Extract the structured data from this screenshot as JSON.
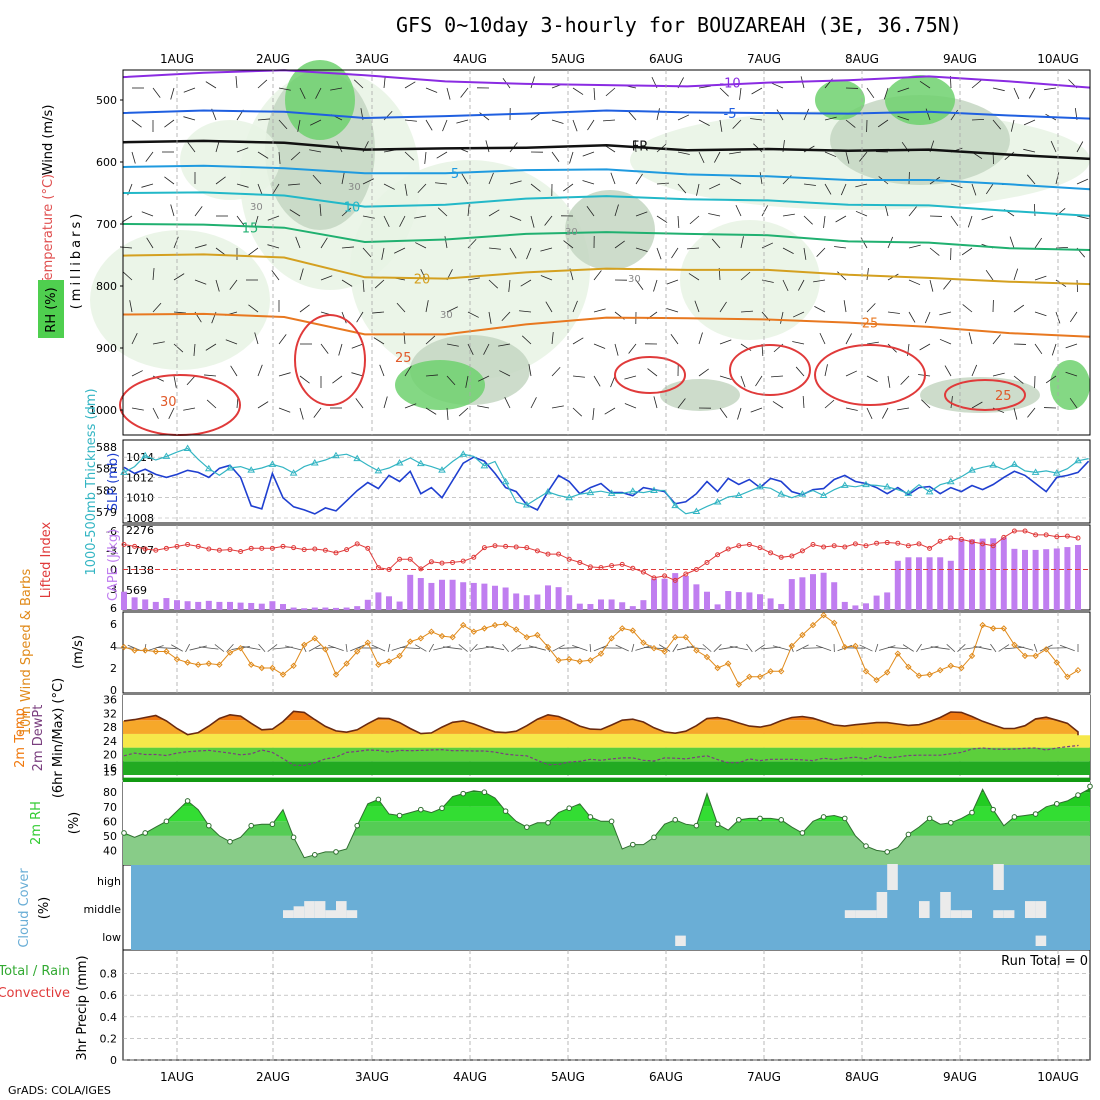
{
  "title": "GFS 0~10day 3-hourly for BOUZAREAH (3E, 36.75N)",
  "credit": "GrADS: COLA/IGES",
  "run_total": "Run Total = 0",
  "colors": {
    "rh_light": "#e8f3e4",
    "rh_mid": "#c4d6c2",
    "rh_green": "#6fd16f",
    "rh_bright": "#33cc33",
    "slp": "#1f3fd0",
    "thickness": "#33b5c3",
    "lifted": "#e03a3a",
    "cape": "#c07ef0",
    "wind": "#e08a1a",
    "temp_fill": "#f07a10",
    "temp_line": "#6a2a10",
    "dew": "#7a3f7f",
    "rh2m": "#33cc33",
    "cloud": "#6aaed6",
    "cloud_block": "#ebebeb",
    "grid": "#a8a8a8"
  },
  "chart_data": [
    {
      "id": "upper_air",
      "type": "contour",
      "y_label_wind": "Wind (m/s)",
      "y_label_temp": "Temperature (°C)",
      "y_label_rh": "RH (%)",
      "y_label_units": "(millibars)",
      "yticks": [
        500,
        600,
        700,
        800,
        900,
        1000
      ],
      "x_dates": [
        "1AUG",
        "2AUG",
        "3AUG",
        "4AUG",
        "5AUG",
        "6AUG",
        "7AUG",
        "8AUG",
        "9AUG",
        "10AUG"
      ],
      "isotherms": [
        {
          "label": "-10",
          "color": "#8a2be2",
          "levels_mb": [
            463,
            456,
            452,
            460,
            470,
            474,
            476,
            478,
            472,
            468,
            462,
            470,
            480
          ]
        },
        {
          "label": "-5",
          "color": "#1f5fe0",
          "levels_mb": [
            521,
            517,
            519,
            529,
            526,
            522,
            517,
            520,
            521,
            522,
            519,
            525,
            530
          ]
        },
        {
          "label": "FR",
          "color": "#111111",
          "levels_mb": [
            568,
            566,
            569,
            580,
            578,
            577,
            573,
            581,
            579,
            582,
            580,
            588,
            595
          ]
        },
        {
          "label": "5",
          "color": "#1f9adf",
          "levels_mb": [
            608,
            606,
            610,
            618,
            618,
            613,
            612,
            620,
            623,
            629,
            629,
            636,
            644
          ]
        },
        {
          "label": "10",
          "color": "#22b8c8",
          "levels_mb": [
            650,
            649,
            654,
            672,
            669,
            659,
            655,
            660,
            662,
            669,
            670,
            679,
            687
          ]
        },
        {
          "label": "15",
          "color": "#20b070",
          "levels_mb": [
            700,
            701,
            706,
            729,
            725,
            716,
            713,
            716,
            718,
            728,
            730,
            739,
            742
          ]
        },
        {
          "label": "20",
          "color": "#d4a020",
          "levels_mb": [
            751,
            749,
            754,
            786,
            788,
            778,
            772,
            774,
            774,
            782,
            787,
            793,
            797
          ]
        },
        {
          "label": "25",
          "color": "#e87820",
          "levels_mb": [
            846,
            845,
            850,
            878,
            878,
            862,
            851,
            852,
            854,
            859,
            866,
            876,
            882
          ]
        }
      ],
      "rh_labels": [
        "30",
        "30",
        "30",
        "30",
        "30"
      ],
      "temp_labels": [
        "30",
        "25",
        "25"
      ]
    },
    {
      "id": "slp_thickness",
      "type": "line",
      "y_label": "SLP (mb)",
      "y2_label": "1000-500mb Thickness (dm)",
      "thickness_ticks": [
        579,
        582,
        585,
        588
      ],
      "slp_ticks": [
        1008,
        1010,
        1012,
        1014
      ],
      "slp_range": [
        1008,
        1015
      ],
      "thickness_range": [
        578.2,
        588
      ],
      "series": [
        {
          "name": "SLP",
          "values": [
            1013.0,
            1012.4,
            1012.8,
            1012.3,
            1012.0,
            1012.3,
            1012.7,
            1012.5,
            1012.0,
            1012.9,
            1013.2,
            1012.0,
            1009.2,
            1008.9,
            1012.4,
            1010.0,
            1009.1,
            1008.8,
            1008.4,
            1009.0,
            1008.7,
            1009.7,
            1010.7,
            1011.5,
            1010.9,
            1012.2,
            1011.6,
            1012.6,
            1010.4,
            1011.0,
            1010.0,
            1011.7,
            1013.4,
            1014.0,
            1013.6,
            1012.4,
            1011.0,
            1010.6,
            1009.3,
            1008.8,
            1010.6,
            1012.2,
            1011.6,
            1010.4,
            1011.0,
            1011.4,
            1010.5,
            1010.5,
            1010.2,
            1011.0,
            1010.8,
            1010.6,
            1009.4,
            1009.6,
            1010.4,
            1011.6,
            1010.6,
            1011.9,
            1011.3,
            1011.8,
            1011.0,
            1011.9,
            1011.6,
            1010.6,
            1010.3,
            1010.8,
            1010.9,
            1011.8,
            1012.2,
            1011.6,
            1011.4,
            1011.0,
            1010.4,
            1011.0,
            1010.3,
            1011.0,
            1011.1,
            1010.4,
            1011.0,
            1010.6,
            1011.2,
            1010.8,
            1011.3,
            1012.0,
            1012.6,
            1012.2,
            1011.4,
            1010.6,
            1012.0,
            1012.2,
            1012.5,
            1013.6
          ]
        },
        {
          "name": "Thickness",
          "values": [
            584.5,
            585.3,
            586.8,
            586.2,
            586.7,
            587.3,
            587.8,
            586.3,
            585.0,
            584.1,
            585.1,
            585.3,
            584.8,
            585.1,
            585.6,
            585.2,
            584.4,
            585.3,
            585.8,
            586.2,
            586.8,
            587.0,
            586.4,
            585.5,
            584.7,
            585.1,
            585.8,
            586.5,
            585.7,
            585.3,
            584.8,
            586.0,
            587.0,
            586.7,
            585.4,
            586.0,
            583.2,
            580.4,
            580.0,
            580.9,
            581.8,
            581.3,
            581.0,
            581.5,
            581.7,
            581.9,
            581.6,
            581.6,
            581.9,
            581.7,
            582.0,
            582.0,
            579.9,
            578.8,
            579.1,
            579.8,
            580.4,
            581.1,
            581.3,
            581.9,
            582.5,
            582.3,
            581.5,
            581.0,
            581.5,
            582.0,
            581.3,
            582.1,
            582.7,
            582.5,
            582.8,
            582.7,
            582.5,
            582.1,
            581.6,
            582.8,
            581.8,
            582.8,
            583.2,
            583.9,
            584.8,
            585.2,
            585.5,
            584.9,
            585.6,
            584.7,
            584.5,
            584.7,
            584.4,
            585.0,
            586.1,
            586.4
          ]
        }
      ]
    },
    {
      "id": "lifted_cape",
      "type": "bar",
      "y_label": "Lifted Index",
      "y2_label": "CAPE (J/kg)",
      "lifted_ticks": [
        "-6",
        "-3",
        "0",
        "3",
        "6"
      ],
      "cape_ticks": [
        "2276",
        "1707",
        "1138",
        "569"
      ],
      "cape_values": [
        520,
        360,
        300,
        230,
        340,
        280,
        250,
        230,
        260,
        230,
        230,
        210,
        200,
        180,
        250,
        170,
        70,
        50,
        70,
        70,
        60,
        70,
        110,
        290,
        500,
        390,
        240,
        1000,
        910,
        770,
        860,
        860,
        790,
        770,
        750,
        690,
        640,
        470,
        420,
        440,
        700,
        650,
        420,
        180,
        170,
        300,
        300,
        220,
        110,
        280,
        890,
        890,
        1050,
        970,
        730,
        520,
        160,
        540,
        510,
        500,
        450,
        330,
        170,
        880,
        930,
        1020,
        1060,
        790,
        230,
        130,
        190,
        410,
        500,
        1400,
        1500,
        1500,
        1500,
        1500,
        1400,
        2000,
        2010,
        2030,
        2040,
        2060,
        1740,
        1710,
        1710,
        1730,
        1750,
        1790,
        1850
      ],
      "lifted_values": [
        -3.9,
        -3.6,
        -3.2,
        -3.0,
        -3.3,
        -3.6,
        -3.9,
        -3.6,
        -3.2,
        -3.0,
        -3.1,
        -2.8,
        -3.3,
        -3.3,
        -3.3,
        -3.6,
        -3.4,
        -3.1,
        -3.2,
        -3.0,
        -2.6,
        -3.1,
        -4.0,
        -3.3,
        -0.3,
        0.0,
        -1.6,
        -1.6,
        -0.1,
        -1.2,
        -1.0,
        -1.1,
        -1.3,
        -1.9,
        -3.4,
        -3.7,
        -3.6,
        -3.5,
        -3.4,
        -2.9,
        -2.4,
        -2.4,
        -1.6,
        -1.1,
        -0.4,
        -0.3,
        -0.6,
        -0.8,
        -0.2,
        0.4,
        1.3,
        1.0,
        1.7,
        0.7,
        0.0,
        -1.1,
        -2.3,
        -3.2,
        -3.7,
        -3.9,
        -3.4,
        -2.6,
        -1.9,
        -2.1,
        -2.9,
        -3.9,
        -3.5,
        -3.7,
        -3.5,
        -4.0,
        -3.7,
        -4.1,
        -4.2,
        -4.1,
        -3.7,
        -4.0,
        -3.3,
        -4.4,
        -4.9,
        -4.7,
        -4.3,
        -4.0,
        -3.7,
        -5.0,
        -6.0,
        -6.0,
        -5.4,
        -5.4,
        -5.1,
        -5.2,
        -4.9
      ]
    },
    {
      "id": "wind10m",
      "type": "line",
      "y_label": "10m Wind Speed & Barbs",
      "y_units": "(m/s)",
      "yticks": [
        "0",
        "2",
        "4",
        "6"
      ],
      "ymax": 7,
      "values": [
        3.9,
        3.6,
        3.6,
        3.5,
        3.5,
        2.8,
        2.5,
        2.3,
        2.4,
        2.3,
        3.4,
        3.8,
        2.3,
        2.0,
        2.0,
        1.4,
        2.2,
        4.1,
        4.7,
        3.7,
        1.4,
        2.4,
        3.5,
        4.3,
        2.3,
        2.6,
        3.1,
        4.4,
        4.7,
        5.3,
        4.9,
        4.8,
        5.9,
        5.3,
        5.6,
        5.9,
        6.0,
        5.5,
        4.8,
        5.0,
        3.9,
        2.7,
        2.8,
        2.6,
        2.7,
        3.3,
        4.7,
        5.6,
        5.4,
        4.3,
        3.8,
        3.5,
        4.8,
        4.8,
        3.6,
        3.0,
        2.0,
        2.4,
        0.5,
        1.2,
        1.2,
        1.7,
        1.7,
        4.0,
        5.0,
        5.9,
        6.8,
        6.1,
        3.9,
        4.0,
        1.7,
        0.9,
        1.6,
        3.3,
        2.1,
        1.3,
        1.4,
        1.8,
        2.2,
        2.0,
        3.1,
        5.9,
        5.6,
        5.6,
        4.1,
        3.1,
        3.1,
        3.7,
        2.5,
        1.2,
        1.8
      ]
    },
    {
      "id": "temp2m",
      "type": "area",
      "y_label": "2m Temp",
      "y2_label": "2m DewPt",
      "y3_label": "(6hr Min/Max) (°C)",
      "yticks": [
        "15",
        "16",
        "20",
        "24",
        "28",
        "32",
        "36"
      ],
      "temp_values": [
        29.8,
        30.2,
        30.8,
        31.4,
        29.8,
        27.6,
        25.8,
        26.4,
        28.3,
        30.5,
        31.6,
        31.2,
        29.1,
        27.2,
        27.4,
        29.6,
        32.6,
        32.3,
        30.2,
        28.2,
        26.9,
        26.5,
        27.2,
        29.0,
        30.6,
        30.5,
        29.3,
        27.6,
        26.1,
        26.3,
        28.0,
        29.4,
        29.8,
        28.9,
        27.7,
        26.6,
        26.4,
        26.8,
        28.4,
        30.3,
        31.6,
        31.1,
        29.8,
        28.3,
        27.4,
        27.3,
        28.6,
        30.0,
        30.3,
        29.5,
        27.8,
        26.6,
        26.2,
        26.8,
        28.4,
        30.5,
        30.8,
        30.2,
        29.2,
        28.3,
        28.0,
        28.6,
        29.9,
        30.8,
        31.1,
        30.6,
        29.6,
        28.6,
        28.3,
        28.7,
        29.0,
        29.3,
        29.3,
        28.9,
        28.5,
        28.7,
        29.6,
        30.8,
        32.4,
        32.3,
        31.1,
        29.7,
        28.6,
        27.6,
        27.6,
        28.4,
        30.4,
        30.9,
        30.0,
        29.1,
        26.6,
        26.0,
        25.6
      ],
      "dew_values": [
        19.6,
        20.4,
        20.0,
        20.0,
        19.7,
        20.4,
        20.8,
        21.0,
        21.2,
        20.8,
        20.4,
        19.9,
        20.2,
        21.3,
        20.6,
        18.8,
        16.9,
        16.8,
        17.6,
        18.7,
        19.2,
        20.6,
        20.9,
        21.3,
        21.2,
        20.7,
        21.2,
        21.1,
        21.2,
        21.3,
        21.4,
        21.1,
        21.1,
        21.0,
        21.0,
        20.7,
        20.1,
        19.8,
        19.6,
        18.3,
        17.0,
        17.1,
        17.8,
        18.0,
        18.6,
        18.3,
        18.7,
        19.0,
        19.0,
        18.3,
        18.1,
        19.0,
        18.9,
        18.7,
        19.2,
        19.6,
        18.5,
        17.6,
        17.6,
        18.7,
        18.2,
        18.6,
        18.6,
        18.6,
        18.4,
        18.2,
        18.9,
        18.5,
        18.9,
        19.2,
        18.7,
        19.6,
        19.0,
        19.3,
        19.7,
        19.8,
        19.8,
        19.8,
        20.2,
        20.6,
        21.6,
        21.9,
        21.6,
        21.5,
        21.6,
        21.8,
        21.9,
        21.3,
        21.9,
        22.3,
        22.6,
        22.5,
        22.8
      ]
    },
    {
      "id": "rh2m",
      "type": "area",
      "y_label": "2m RH",
      "y_units": "(%)",
      "yticks": [
        "40",
        "50",
        "60",
        "70",
        "80"
      ],
      "ymin": 30,
      "ymax": 87,
      "values": [
        52,
        49,
        52,
        56,
        60,
        67,
        74,
        68,
        57,
        50,
        46,
        49,
        57,
        58,
        58,
        68,
        49,
        35,
        37,
        39,
        39,
        41,
        57,
        72,
        75,
        65,
        64,
        66,
        68,
        66,
        69,
        77,
        79,
        81,
        80,
        76,
        67,
        60,
        56,
        59,
        59,
        66,
        69,
        72,
        63,
        60,
        60,
        41,
        44,
        44,
        49,
        58,
        61,
        58,
        57,
        79,
        58,
        54,
        61,
        62,
        62,
        62,
        61,
        56,
        52,
        60,
        63,
        64,
        62,
        50,
        43,
        40,
        39,
        42,
        51,
        56,
        62,
        58,
        59,
        62,
        66,
        82,
        68,
        57,
        63,
        64,
        65,
        70,
        72,
        74,
        78,
        82,
        84
      ]
    },
    {
      "id": "cloud",
      "type": "heatmap",
      "y_label": "Cloud Cover",
      "y_units": "(%)",
      "yticks": [
        "high",
        "middle",
        "low"
      ],
      "middle_blocks": [
        [
          15,
          16,
          30
        ],
        [
          16,
          17,
          45
        ],
        [
          17,
          18,
          65
        ],
        [
          18,
          19,
          65
        ],
        [
          19,
          20,
          30
        ],
        [
          20,
          21,
          65
        ],
        [
          21,
          22,
          30
        ],
        [
          68,
          69,
          30
        ],
        [
          69,
          70,
          30
        ],
        [
          70,
          71,
          30
        ],
        [
          71,
          72,
          100
        ],
        [
          75,
          76,
          65
        ],
        [
          77,
          78,
          100
        ],
        [
          78,
          79,
          30
        ],
        [
          79,
          80,
          30
        ],
        [
          82,
          83,
          30
        ],
        [
          83,
          84,
          30
        ],
        [
          85,
          86,
          65
        ],
        [
          86,
          87,
          65
        ]
      ],
      "high_blocks": [
        [
          72,
          73,
          100
        ],
        [
          82,
          83,
          100
        ]
      ],
      "low_blocks": [
        [
          52,
          53,
          40
        ],
        [
          86,
          87,
          40
        ]
      ]
    },
    {
      "id": "precip",
      "type": "bar",
      "y_label": "3hr Precip (mm)",
      "y2_label": "Total / Rain",
      "y3_label": "Convective",
      "yticks": [
        "0",
        "0.2",
        "0.4",
        "0.6",
        "0.8"
      ],
      "ymax": 1,
      "values": []
    }
  ]
}
